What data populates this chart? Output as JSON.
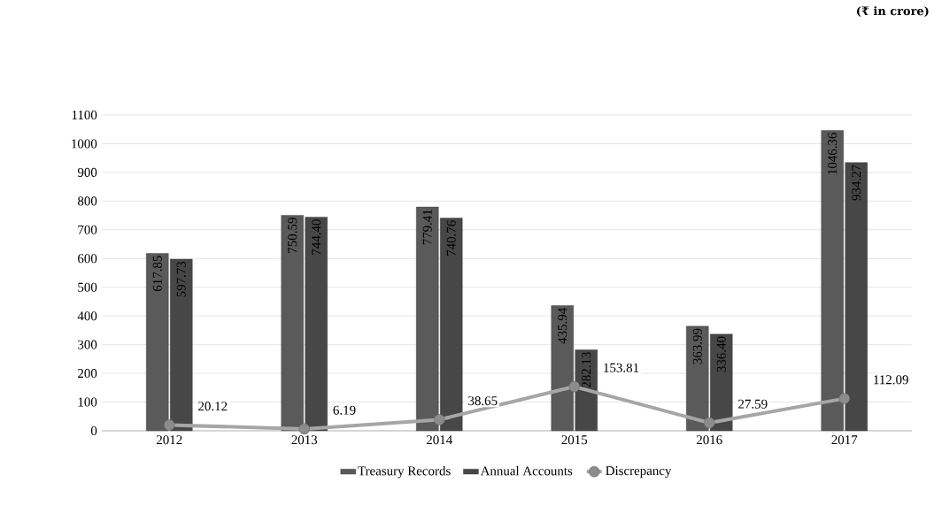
{
  "chart_data": {
    "type": "bar",
    "categories": [
      "2012",
      "2013",
      "2014",
      "2015",
      "2016",
      "2017"
    ],
    "series": [
      {
        "name": "Treasury Records",
        "color": "#5a5a5a",
        "values": [
          617.85,
          750.59,
          779.41,
          435.94,
          363.99,
          1046.36
        ],
        "value_labels": [
          "617.85",
          "750.59",
          "779.41",
          "435.94",
          "363.99",
          "1046.36"
        ]
      },
      {
        "name": "Annual Accounts",
        "color": "#474747",
        "values": [
          597.73,
          744.4,
          740.76,
          282.13,
          336.4,
          934.27
        ],
        "value_labels": [
          "597.73",
          "744.40",
          "740.76",
          "282.13",
          "336.40",
          "934.27"
        ]
      },
      {
        "name": "Discrepancy",
        "type": "line",
        "color": "#a6a6a6",
        "marker": "circle",
        "values": [
          20.12,
          6.19,
          38.65,
          153.81,
          27.59,
          112.09
        ],
        "value_labels": [
          "20.12",
          "6.19",
          "38.65",
          "153.81",
          "27.59",
          "112.09"
        ]
      }
    ],
    "ylim": [
      0,
      1100
    ],
    "yticks": [
      0,
      100,
      200,
      300,
      400,
      500,
      600,
      700,
      800,
      900,
      1000,
      1100
    ],
    "grid": "y",
    "legend": "bottom",
    "annotations": [
      "(₹ in crore)"
    ]
  }
}
